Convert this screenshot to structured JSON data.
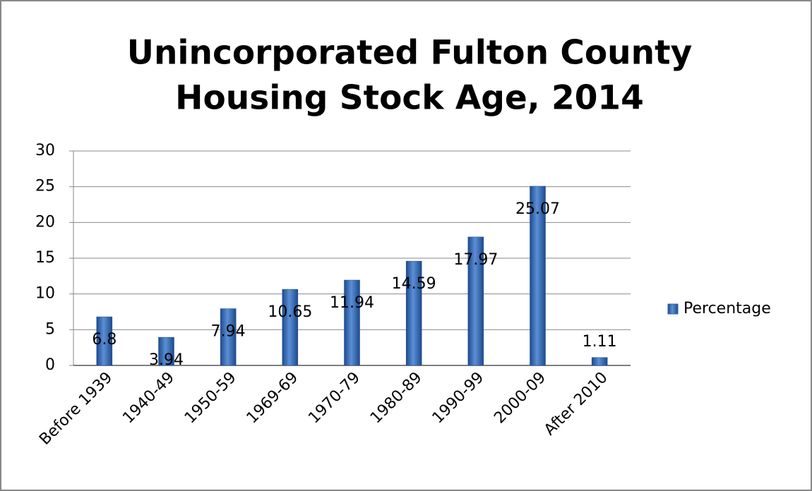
{
  "chart_data": {
    "type": "bar",
    "title": [
      "Unincorporated Fulton County",
      "Housing Stock Age, 2014"
    ],
    "categories": [
      "Before 1939",
      "1940-49",
      "1950-59",
      "1969-69",
      "1970-79",
      "1980-89",
      "1990-99",
      "2000-09",
      "After 2010"
    ],
    "series": [
      {
        "name": "Percentage",
        "color": "#2e5fa8",
        "values": [
          6.8,
          3.94,
          7.94,
          10.65,
          11.94,
          14.59,
          17.97,
          25.07,
          1.11
        ]
      }
    ],
    "ylim": [
      0,
      30
    ],
    "yticks": [
      0,
      5,
      10,
      15,
      20,
      25,
      30
    ],
    "grid": true,
    "legend": "right"
  }
}
